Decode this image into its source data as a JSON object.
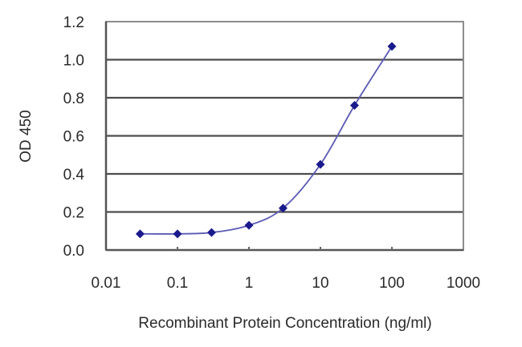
{
  "chart_data": {
    "type": "line",
    "title": "",
    "xlabel": "Recombinant Protein Concentration (ng/ml)",
    "ylabel": "OD 450",
    "xscale": "log",
    "xlim": [
      0.01,
      1000
    ],
    "ylim": [
      0.0,
      1.2
    ],
    "x_ticks": [
      "0.01",
      "0.1",
      "1",
      "10",
      "100",
      "1000"
    ],
    "y_ticks": [
      "0.0",
      "0.2",
      "0.4",
      "0.6",
      "0.8",
      "1.0",
      "1.2"
    ],
    "grid": {
      "horizontal": true,
      "vertical": false
    },
    "legend": null,
    "series": [
      {
        "name": "OD 450",
        "color": "#1a1a8c",
        "marker": "diamond",
        "x": [
          0.03,
          0.1,
          0.3,
          1,
          3,
          10,
          30,
          100
        ],
        "y": [
          0.085,
          0.085,
          0.092,
          0.13,
          0.22,
          0.45,
          0.76,
          1.07
        ]
      }
    ]
  },
  "colors": {
    "series": "#1a1a8c",
    "line": "#5a5ab4",
    "grid": "#4d4d4d",
    "frame": "#8c8c8c"
  }
}
